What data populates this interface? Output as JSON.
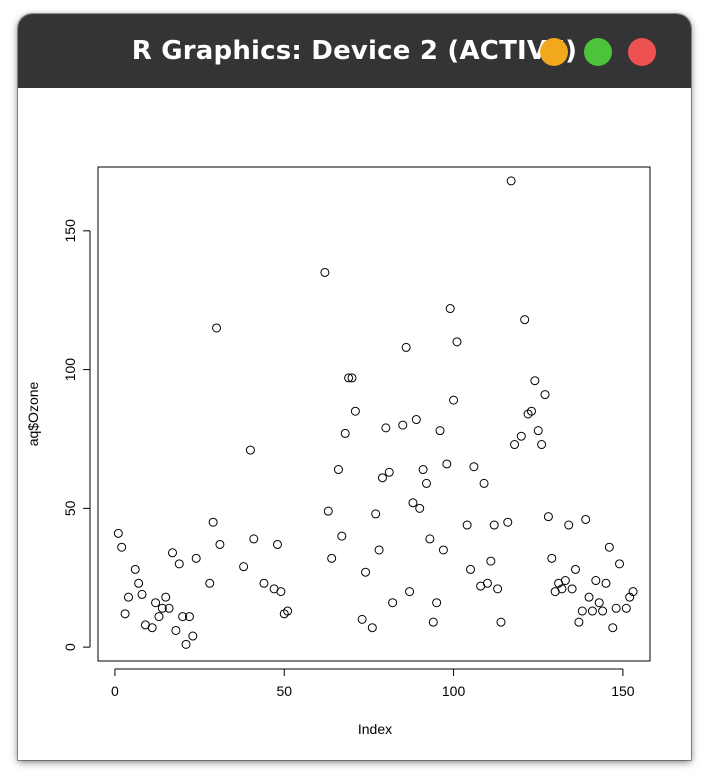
{
  "window": {
    "title": "R Graphics: Device 2 (ACTIVE)",
    "buttons": [
      {
        "name": "minimize",
        "color": "#F2A81D"
      },
      {
        "name": "maximize",
        "color": "#4BC43A"
      },
      {
        "name": "close",
        "color": "#EE5151"
      }
    ]
  },
  "chart_data": {
    "type": "scatter",
    "title": "",
    "xlabel": "Index",
    "ylabel": "aq$Ozone",
    "xlim": [
      -5,
      158
    ],
    "ylim": [
      -5,
      173
    ],
    "x_ticks": [
      0,
      50,
      100,
      150
    ],
    "y_ticks": [
      0,
      50,
      100,
      150
    ],
    "x_tick_labels": [
      "0",
      "50",
      "100",
      "150"
    ],
    "y_tick_labels": [
      "0",
      "50",
      "100",
      "150"
    ],
    "grid": false,
    "marker": "open-circle",
    "points": [
      [
        1,
        41
      ],
      [
        2,
        36
      ],
      [
        3,
        12
      ],
      [
        4,
        18
      ],
      [
        6,
        28
      ],
      [
        7,
        23
      ],
      [
        8,
        19
      ],
      [
        9,
        8
      ],
      [
        11,
        7
      ],
      [
        12,
        16
      ],
      [
        13,
        11
      ],
      [
        14,
        14
      ],
      [
        15,
        18
      ],
      [
        16,
        14
      ],
      [
        17,
        34
      ],
      [
        18,
        6
      ],
      [
        19,
        30
      ],
      [
        20,
        11
      ],
      [
        21,
        1
      ],
      [
        22,
        11
      ],
      [
        23,
        4
      ],
      [
        24,
        32
      ],
      [
        28,
        23
      ],
      [
        29,
        45
      ],
      [
        30,
        115
      ],
      [
        31,
        37
      ],
      [
        38,
        29
      ],
      [
        40,
        71
      ],
      [
        41,
        39
      ],
      [
        44,
        23
      ],
      [
        47,
        21
      ],
      [
        48,
        37
      ],
      [
        49,
        20
      ],
      [
        50,
        12
      ],
      [
        51,
        13
      ],
      [
        62,
        135
      ],
      [
        63,
        49
      ],
      [
        64,
        32
      ],
      [
        66,
        64
      ],
      [
        67,
        40
      ],
      [
        68,
        77
      ],
      [
        69,
        97
      ],
      [
        70,
        97
      ],
      [
        71,
        85
      ],
      [
        73,
        10
      ],
      [
        74,
        27
      ],
      [
        76,
        7
      ],
      [
        77,
        48
      ],
      [
        78,
        35
      ],
      [
        79,
        61
      ],
      [
        80,
        79
      ],
      [
        81,
        63
      ],
      [
        82,
        16
      ],
      [
        85,
        80
      ],
      [
        86,
        108
      ],
      [
        87,
        20
      ],
      [
        88,
        52
      ],
      [
        89,
        82
      ],
      [
        90,
        50
      ],
      [
        91,
        64
      ],
      [
        92,
        59
      ],
      [
        93,
        39
      ],
      [
        94,
        9
      ],
      [
        95,
        16
      ],
      [
        96,
        78
      ],
      [
        97,
        35
      ],
      [
        98,
        66
      ],
      [
        99,
        122
      ],
      [
        100,
        89
      ],
      [
        101,
        110
      ],
      [
        104,
        44
      ],
      [
        105,
        28
      ],
      [
        106,
        65
      ],
      [
        108,
        22
      ],
      [
        109,
        59
      ],
      [
        110,
        23
      ],
      [
        111,
        31
      ],
      [
        112,
        44
      ],
      [
        113,
        21
      ],
      [
        114,
        9
      ],
      [
        116,
        45
      ],
      [
        117,
        168
      ],
      [
        118,
        73
      ],
      [
        120,
        76
      ],
      [
        121,
        118
      ],
      [
        122,
        84
      ],
      [
        123,
        85
      ],
      [
        124,
        96
      ],
      [
        125,
        78
      ],
      [
        126,
        73
      ],
      [
        127,
        91
      ],
      [
        128,
        47
      ],
      [
        129,
        32
      ],
      [
        130,
        20
      ],
      [
        131,
        23
      ],
      [
        132,
        21
      ],
      [
        133,
        24
      ],
      [
        134,
        44
      ],
      [
        135,
        21
      ],
      [
        136,
        28
      ],
      [
        137,
        9
      ],
      [
        138,
        13
      ],
      [
        139,
        46
      ],
      [
        140,
        18
      ],
      [
        141,
        13
      ],
      [
        142,
        24
      ],
      [
        143,
        16
      ],
      [
        144,
        13
      ],
      [
        145,
        23
      ],
      [
        146,
        36
      ],
      [
        147,
        7
      ],
      [
        148,
        14
      ],
      [
        149,
        30
      ],
      [
        151,
        14
      ],
      [
        152,
        18
      ],
      [
        153,
        20
      ]
    ]
  }
}
